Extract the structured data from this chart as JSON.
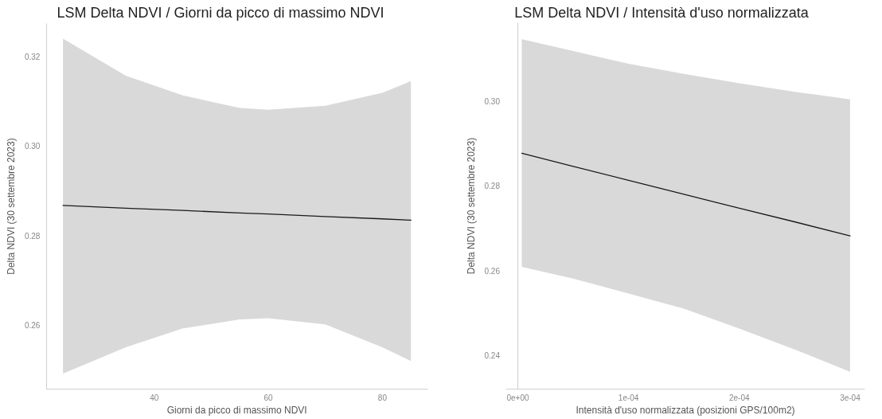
{
  "chart_data": [
    {
      "type": "line",
      "title": "LSM Delta NDVI / Giorni da picco di massimo NDVI",
      "xlabel": "Giorni da picco di massimo NDVI",
      "ylabel": "Delta NDVI (30 settembre 2023)",
      "x": [
        24,
        35,
        45,
        55,
        60,
        70,
        80,
        85
      ],
      "xlim": [
        21.1,
        87.9
      ],
      "xticks": [
        40,
        60,
        80
      ],
      "ylim": [
        0.2458,
        0.3274
      ],
      "yticks": [
        {
          "value": 0.26,
          "label": "0.26"
        },
        {
          "value": 0.28,
          "label": "0.28"
        },
        {
          "value": 0.3,
          "label": "0.30"
        },
        {
          "value": 0.32,
          "label": "0.32"
        }
      ],
      "grid": false,
      "marker": "none",
      "line_style": "solid",
      "series": [
        {
          "color": "#1a1a1a",
          "values": [
            0.2868,
            0.2862,
            0.2857,
            0.2851,
            0.2849,
            0.2843,
            0.2838,
            0.2835
          ],
          "lower": [
            0.2492,
            0.2551,
            0.2593,
            0.2613,
            0.2616,
            0.2602,
            0.2551,
            0.252
          ],
          "upper": [
            0.3241,
            0.3158,
            0.3114,
            0.3086,
            0.3082,
            0.3091,
            0.312,
            0.3146
          ]
        }
      ]
    },
    {
      "type": "line",
      "title": "LSM Delta NDVI / Intensità d'uso normalizzata",
      "xlabel": "Intensità d'uso normalizzata (posizioni GPS/100m2)",
      "ylabel": "Delta NDVI (30 settembre 2023)",
      "x": [
        3.6e-06,
        5e-05,
        0.0001,
        0.00015,
        0.0002,
        0.00025,
        0.0003
      ],
      "xlim": [
        -1.04e-05,
        0.000313
      ],
      "xticks": [
        {
          "value": 0,
          "label": "0e+00"
        },
        {
          "value": 0.0001,
          "label": "1e-04"
        },
        {
          "value": 0.0002,
          "label": "2e-04"
        },
        {
          "value": 0.0003,
          "label": "3e-04"
        }
      ],
      "ylim": [
        0.2322,
        0.3185
      ],
      "yticks": [
        {
          "value": 0.24,
          "label": "0.24"
        },
        {
          "value": 0.26,
          "label": "0.26"
        },
        {
          "value": 0.28,
          "label": "0.28"
        },
        {
          "value": 0.3,
          "label": "0.30"
        }
      ],
      "grid": false,
      "marker": "none",
      "line_style": "solid",
      "series": [
        {
          "color": "#1a1a1a",
          "values": [
            0.2878,
            0.2847,
            0.2814,
            0.2781,
            0.2748,
            0.2716,
            0.2683
          ],
          "lower": [
            0.261,
            0.2582,
            0.2547,
            0.2511,
            0.2464,
            0.2415,
            0.2362
          ],
          "upper": [
            0.3147,
            0.3119,
            0.3089,
            0.3065,
            0.3043,
            0.3023,
            0.3005
          ]
        }
      ]
    }
  ]
}
